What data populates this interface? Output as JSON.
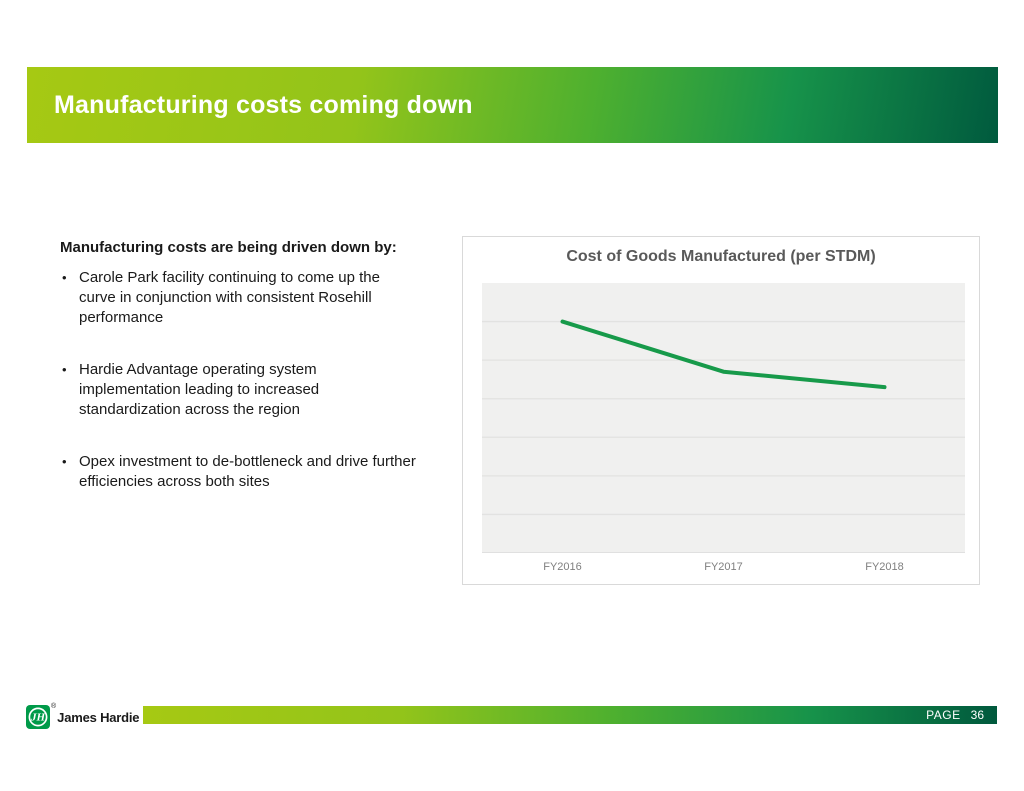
{
  "slide": {
    "title": "Manufacturing costs coming down"
  },
  "content": {
    "heading": "Manufacturing costs are being driven down by:",
    "bullet_char": "•",
    "bullets": [
      "Carole Park facility continuing to come up the curve in conjunction with consistent Rosehill performance",
      "Hardie Advantage operating system implementation leading to increased standardization across the region",
      "Opex investment to de-bottleneck and drive further efficiencies across both sites"
    ]
  },
  "chart": {
    "title": "Cost of Goods Manufactured (per STDM)"
  },
  "chart_data": {
    "type": "line",
    "title": "Cost of Goods Manufactured (per STDM)",
    "categories": [
      "FY2016",
      "FY2017",
      "FY2018"
    ],
    "values": [
      6.0,
      4.7,
      4.3
    ],
    "xlabel": "",
    "ylabel": "",
    "ylim": [
      0,
      7
    ],
    "gridline_interval": 1,
    "y_axis_labels_visible": false,
    "grid": true,
    "legend": "none",
    "line_color": "#179a4a",
    "plot_fill": "#f0f0ef",
    "gridline_color": "#e2e2e1"
  },
  "footer": {
    "brand": "James Hardie",
    "registered_mark": "®",
    "logo_monogram": "JH",
    "page_label": "PAGE",
    "page_number": "36"
  },
  "colors": {
    "gradient_start": "#a6c913",
    "gradient_mid": "#4eb02f",
    "gradient_end": "#005a3e",
    "chart_title_grey": "#595959",
    "axis_label_grey": "#7f7f7f",
    "logo_green": "#009a49"
  }
}
